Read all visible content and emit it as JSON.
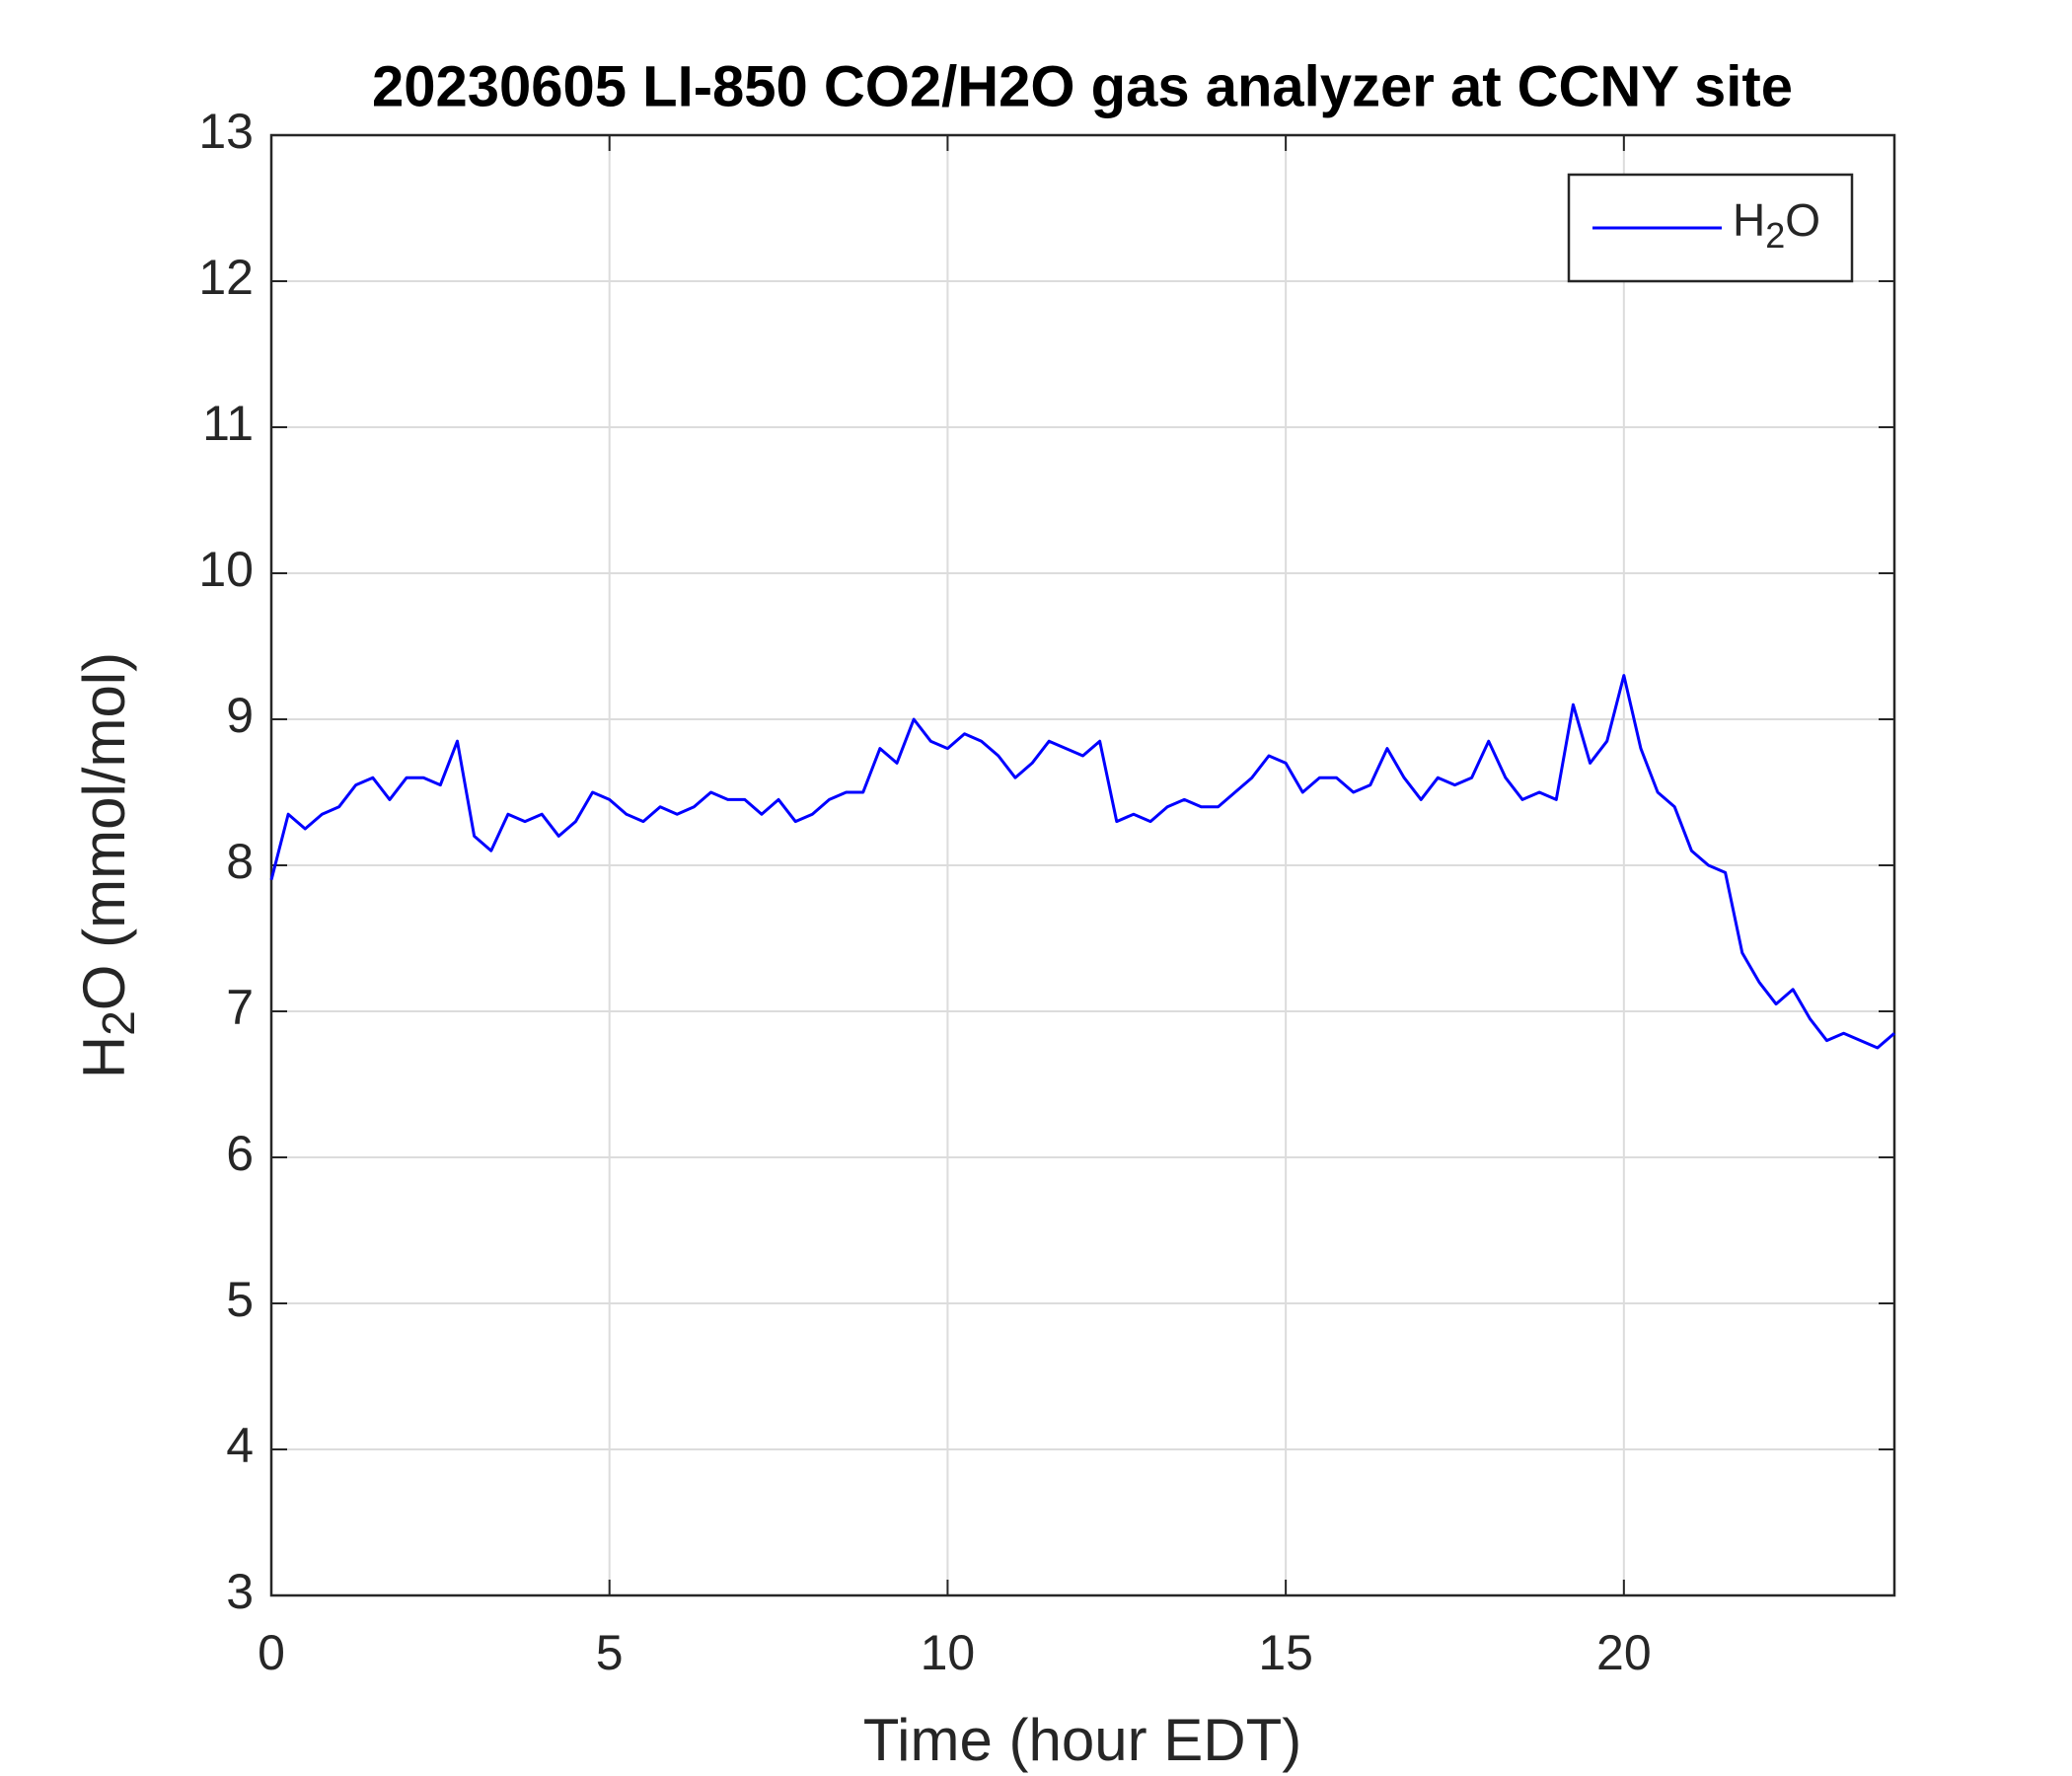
{
  "chart_data": {
    "type": "line",
    "title": "20230605 LI-850 CO2/H2O gas analyzer at CCNY site",
    "xlabel": "Time (hour EDT)",
    "ylabel": [
      "H",
      "2",
      "O (mmol/mol)"
    ],
    "x": [
      0,
      0.25,
      0.5,
      0.75,
      1,
      1.25,
      1.5,
      1.75,
      2,
      2.25,
      2.5,
      2.75,
      3,
      3.25,
      3.5,
      3.75,
      4,
      4.25,
      4.5,
      4.75,
      5,
      5.25,
      5.5,
      5.75,
      6,
      6.25,
      6.5,
      6.75,
      7,
      7.25,
      7.5,
      7.75,
      8,
      8.25,
      8.5,
      8.75,
      9,
      9.25,
      9.5,
      9.75,
      10,
      10.25,
      10.5,
      10.75,
      11,
      11.25,
      11.5,
      11.75,
      12,
      12.25,
      12.5,
      12.75,
      13,
      13.25,
      13.5,
      13.75,
      14,
      14.25,
      14.5,
      14.75,
      15,
      15.25,
      15.5,
      15.75,
      16,
      16.25,
      16.5,
      16.75,
      17,
      17.25,
      17.5,
      17.75,
      18,
      18.25,
      18.5,
      18.75,
      19,
      19.25,
      19.5,
      19.75,
      20,
      20.25,
      20.5,
      20.75,
      21,
      21.25,
      21.5,
      21.75,
      22,
      22.25,
      22.5,
      22.75,
      23,
      23.25,
      23.5,
      23.75,
      24
    ],
    "series": [
      {
        "name": [
          "H",
          "2",
          "O"
        ],
        "color": "#0000ff",
        "values": [
          7.9,
          8.35,
          8.25,
          8.35,
          8.4,
          8.55,
          8.6,
          8.45,
          8.6,
          8.6,
          8.55,
          8.85,
          8.2,
          8.1,
          8.35,
          8.3,
          8.35,
          8.2,
          8.3,
          8.5,
          8.45,
          8.35,
          8.3,
          8.4,
          8.35,
          8.4,
          8.5,
          8.45,
          8.45,
          8.35,
          8.45,
          8.3,
          8.35,
          8.45,
          8.5,
          8.5,
          8.8,
          8.7,
          9.0,
          8.85,
          8.8,
          8.9,
          8.85,
          8.75,
          8.6,
          8.7,
          8.85,
          8.8,
          8.75,
          8.85,
          8.3,
          8.35,
          8.3,
          8.4,
          8.45,
          8.4,
          8.4,
          8.5,
          8.6,
          8.75,
          8.7,
          8.5,
          8.6,
          8.6,
          8.5,
          8.55,
          8.8,
          8.6,
          8.45,
          8.6,
          8.55,
          8.6,
          8.85,
          8.6,
          8.45,
          8.5,
          8.45,
          9.1,
          8.7,
          8.85,
          9.3,
          8.8,
          8.5,
          8.4,
          8.1,
          8.0,
          7.95,
          7.4,
          7.2,
          7.05,
          7.15,
          6.95,
          6.8,
          6.85,
          6.8,
          6.75,
          6.85
        ]
      }
    ],
    "xlim": [
      0,
      24
    ],
    "xticks": [
      0,
      5,
      10,
      15,
      20
    ],
    "ylim": [
      3,
      13
    ],
    "yticks": [
      3,
      4,
      5,
      6,
      7,
      8,
      9,
      10,
      11,
      12,
      13
    ],
    "grid": true,
    "legend": "upper right"
  }
}
